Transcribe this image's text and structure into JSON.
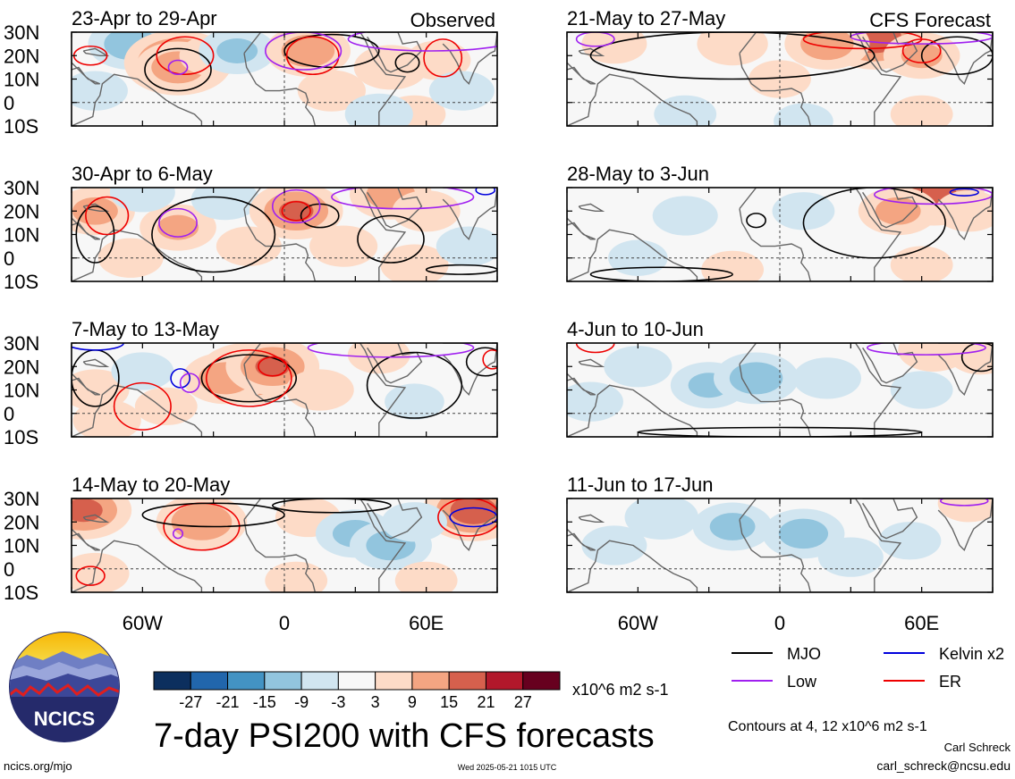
{
  "chart_data": {
    "type": "heatmap",
    "title": "7-day PSI200 with CFS forecasts",
    "colorbar": {
      "unit_label": "x10^6 m2 s-1",
      "tick_labels": [
        "-27",
        "-21",
        "-15",
        "-9",
        "-3",
        "3",
        "9",
        "15",
        "21",
        "27"
      ],
      "bins": [
        {
          "lo": null,
          "hi": -27,
          "color": "#0c2f5e"
        },
        {
          "lo": -27,
          "hi": -21,
          "color": "#2166ac"
        },
        {
          "lo": -21,
          "hi": -15,
          "color": "#4393c3"
        },
        {
          "lo": -15,
          "hi": -9,
          "color": "#92c5de"
        },
        {
          "lo": -9,
          "hi": -3,
          "color": "#d1e5f0"
        },
        {
          "lo": -3,
          "hi": 3,
          "color": "#f7f7f7"
        },
        {
          "lo": 3,
          "hi": 9,
          "color": "#fddbc7"
        },
        {
          "lo": 9,
          "hi": 15,
          "color": "#f4a582"
        },
        {
          "lo": 15,
          "hi": 21,
          "color": "#d6604d"
        },
        {
          "lo": 21,
          "hi": 27,
          "color": "#b2182b"
        },
        {
          "lo": 27,
          "hi": null,
          "color": "#67001f"
        }
      ]
    },
    "lat_ticks": [
      "30N",
      "20N",
      "10N",
      "0",
      "10S"
    ],
    "lon_ticks": [
      "60W",
      "0",
      "60E"
    ],
    "lat_range": [
      -10,
      30
    ],
    "lon_range": [
      -90,
      90
    ],
    "columns": [
      {
        "label": "Observed"
      },
      {
        "label": "CFS Forecast"
      }
    ],
    "panels": [
      {
        "col": 0,
        "row": 0,
        "period": "23-Apr to 29-Apr",
        "anomalies": [
          {
            "lon": -65,
            "lat": 25,
            "v": -12
          },
          {
            "lon": -45,
            "lat": 17,
            "v": 20
          },
          {
            "lon": -45,
            "lat": 15,
            "v": 12
          },
          {
            "lon": -30,
            "lat": 20,
            "v": 6
          },
          {
            "lon": -20,
            "lat": 22,
            "v": -9
          },
          {
            "lon": 10,
            "lat": 22,
            "v": 12
          },
          {
            "lon": 20,
            "lat": 5,
            "v": 6
          },
          {
            "lon": 45,
            "lat": 15,
            "v": 8
          },
          {
            "lon": 65,
            "lat": 18,
            "v": 5
          },
          {
            "lon": 55,
            "lat": -5,
            "v": 4
          },
          {
            "lon": 40,
            "lat": -5,
            "v": -6
          },
          {
            "lon": 75,
            "lat": 5,
            "v": -5
          },
          {
            "lon": -80,
            "lat": 5,
            "v": -5
          }
        ],
        "contours": [
          {
            "type": "MJO",
            "lon": -45,
            "lat": 14,
            "rlon": 14,
            "rlat": 9
          },
          {
            "type": "MJO",
            "lon": 20,
            "lat": 22,
            "rlon": 20,
            "rlat": 7
          },
          {
            "type": "MJO",
            "lon": 52,
            "lat": 17,
            "rlon": 5,
            "rlat": 4
          },
          {
            "type": "ER",
            "lon": -42,
            "lat": 20,
            "rlon": 12,
            "rlat": 8
          },
          {
            "type": "ER",
            "lon": 12,
            "lat": 20,
            "rlon": 11,
            "rlat": 8
          },
          {
            "type": "ER",
            "lon": 67,
            "lat": 19,
            "rlon": 8,
            "rlat": 8
          },
          {
            "type": "ER",
            "lon": -82,
            "lat": 20,
            "rlon": 7,
            "rlat": 4
          },
          {
            "type": "Low",
            "lon": -45,
            "lat": 15,
            "rlon": 4,
            "rlat": 3
          },
          {
            "type": "Low",
            "lon": 8,
            "lat": 22,
            "rlon": 16,
            "rlat": 8
          },
          {
            "type": "Low",
            "lon": 62,
            "lat": 27,
            "rlon": 35,
            "rlat": 5
          }
        ]
      },
      {
        "col": 0,
        "row": 1,
        "period": "30-Apr to 6-May",
        "anomalies": [
          {
            "lon": -80,
            "lat": 20,
            "v": 10
          },
          {
            "lon": -45,
            "lat": 13,
            "v": 9
          },
          {
            "lon": -65,
            "lat": 0,
            "v": 5
          },
          {
            "lon": -25,
            "lat": 25,
            "v": -6
          },
          {
            "lon": -15,
            "lat": 5,
            "v": 5
          },
          {
            "lon": 5,
            "lat": 20,
            "v": 15
          },
          {
            "lon": 45,
            "lat": 27,
            "v": 11
          },
          {
            "lon": 60,
            "lat": 20,
            "v": 6
          },
          {
            "lon": 25,
            "lat": 5,
            "v": 6
          },
          {
            "lon": 55,
            "lat": -3,
            "v": 6
          },
          {
            "lon": -60,
            "lat": 28,
            "v": -5
          },
          {
            "lon": 78,
            "lat": 5,
            "v": -5
          }
        ],
        "contours": [
          {
            "type": "MJO",
            "lon": -30,
            "lat": 10,
            "rlon": 26,
            "rlat": 16
          },
          {
            "type": "MJO",
            "lon": 45,
            "lat": 8,
            "rlon": 14,
            "rlat": 10
          },
          {
            "type": "MJO",
            "lon": 15,
            "lat": 18,
            "rlon": 8,
            "rlat": 5
          },
          {
            "type": "MJO",
            "lon": -80,
            "lat": 10,
            "rlon": 8,
            "rlat": 12
          },
          {
            "type": "MJO",
            "lon": 75,
            "lat": -5,
            "rlon": 15,
            "rlat": 2
          },
          {
            "type": "ER",
            "lon": -75,
            "lat": 18,
            "rlon": 9,
            "rlat": 8
          },
          {
            "type": "ER",
            "lon": 5,
            "lat": 20,
            "rlon": 6,
            "rlat": 4
          },
          {
            "type": "Low",
            "lon": -45,
            "lat": 15,
            "rlon": 8,
            "rlat": 6
          },
          {
            "type": "Low",
            "lon": 5,
            "lat": 22,
            "rlon": 10,
            "rlat": 7
          },
          {
            "type": "Low",
            "lon": 50,
            "lat": 26,
            "rlon": 30,
            "rlat": 5
          },
          {
            "type": "Kelvin x2",
            "lon": 85,
            "lat": 29,
            "rlon": 4,
            "rlat": 2
          }
        ]
      },
      {
        "col": 0,
        "row": 2,
        "period": "7-May to 13-May",
        "anomalies": [
          {
            "lon": -15,
            "lat": 17,
            "v": 18
          },
          {
            "lon": -25,
            "lat": 15,
            "v": 12
          },
          {
            "lon": -5,
            "lat": 20,
            "v": 15
          },
          {
            "lon": -80,
            "lat": 10,
            "v": 6
          },
          {
            "lon": -75,
            "lat": -3,
            "v": 6
          },
          {
            "lon": -50,
            "lat": 3,
            "v": 4
          },
          {
            "lon": 15,
            "lat": 10,
            "v": 6
          },
          {
            "lon": 40,
            "lat": 25,
            "v": 4
          },
          {
            "lon": -60,
            "lat": 18,
            "v": -4
          },
          {
            "lon": 55,
            "lat": 5,
            "v": -3
          }
        ],
        "contours": [
          {
            "type": "MJO",
            "lon": -15,
            "lat": 15,
            "rlon": 20,
            "rlat": 10
          },
          {
            "type": "MJO",
            "lon": 55,
            "lat": 12,
            "rlon": 20,
            "rlat": 14
          },
          {
            "type": "MJO",
            "lon": -80,
            "lat": 15,
            "rlon": 10,
            "rlat": 12
          },
          {
            "type": "MJO",
            "lon": 85,
            "lat": 22,
            "rlon": 8,
            "rlat": 6
          },
          {
            "type": "ER",
            "lon": -15,
            "lat": 15,
            "rlon": 18,
            "rlat": 12
          },
          {
            "type": "ER",
            "lon": -60,
            "lat": 3,
            "rlon": 12,
            "rlat": 10
          },
          {
            "type": "ER",
            "lon": -5,
            "lat": 20,
            "rlon": 6,
            "rlat": 4
          },
          {
            "type": "ER",
            "lon": 88,
            "lat": 23,
            "rlon": 4,
            "rlat": 4
          },
          {
            "type": "Kelvin x2",
            "lon": -44,
            "lat": 15,
            "rlon": 4,
            "rlat": 4
          },
          {
            "type": "Kelvin x2",
            "lon": -80,
            "lat": 30,
            "rlon": 12,
            "rlat": 3
          },
          {
            "type": "Low",
            "lon": -40,
            "lat": 13,
            "rlon": 4,
            "rlat": 4
          },
          {
            "type": "Low",
            "lon": 45,
            "lat": 28,
            "rlon": 35,
            "rlat": 4
          }
        ]
      },
      {
        "col": 0,
        "row": 3,
        "period": "14-May to 20-May",
        "anomalies": [
          {
            "lon": -35,
            "lat": 20,
            "v": 14
          },
          {
            "lon": -85,
            "lat": 25,
            "v": 16
          },
          {
            "lon": 80,
            "lat": 25,
            "v": 18
          },
          {
            "lon": -80,
            "lat": -2,
            "v": 6
          },
          {
            "lon": 10,
            "lat": 22,
            "v": 5
          },
          {
            "lon": 30,
            "lat": 15,
            "v": -10
          },
          {
            "lon": 45,
            "lat": 10,
            "v": -11
          },
          {
            "lon": 55,
            "lat": 20,
            "v": -5
          },
          {
            "lon": 5,
            "lat": -5,
            "v": 4
          },
          {
            "lon": 60,
            "lat": -5,
            "v": 4
          }
        ],
        "contours": [
          {
            "type": "ER",
            "lon": -35,
            "lat": 18,
            "rlon": 16,
            "rlat": 10
          },
          {
            "type": "ER",
            "lon": 78,
            "lat": 22,
            "rlon": 13,
            "rlat": 8
          },
          {
            "type": "ER",
            "lon": -82,
            "lat": -3,
            "rlon": 6,
            "rlat": 4
          },
          {
            "type": "Kelvin x2",
            "lon": 80,
            "lat": 22,
            "rlon": 10,
            "rlat": 4
          },
          {
            "type": "Low",
            "lon": -45,
            "lat": 15,
            "rlon": 2,
            "rlat": 2
          },
          {
            "type": "MJO",
            "lon": -30,
            "lat": 23,
            "rlon": 30,
            "rlat": 5
          },
          {
            "type": "MJO",
            "lon": 20,
            "lat": 27,
            "rlon": 25,
            "rlat": 3
          }
        ]
      },
      {
        "col": 1,
        "row": 0,
        "period": "21-May to 27-May",
        "anomalies": [
          {
            "lon": 40,
            "lat": 28,
            "v": 20
          },
          {
            "lon": 20,
            "lat": 25,
            "v": 12
          },
          {
            "lon": -20,
            "lat": 25,
            "v": 7
          },
          {
            "lon": 60,
            "lat": 20,
            "v": 9
          },
          {
            "lon": -70,
            "lat": 25,
            "v": 5
          },
          {
            "lon": 0,
            "lat": 10,
            "v": 4
          },
          {
            "lon": 60,
            "lat": -5,
            "v": 4
          },
          {
            "lon": -40,
            "lat": -5,
            "v": -4
          },
          {
            "lon": 10,
            "lat": -8,
            "v": -3
          }
        ],
        "contours": [
          {
            "type": "MJO",
            "lon": -20,
            "lat": 20,
            "rlon": 60,
            "rlat": 10
          },
          {
            "type": "MJO",
            "lon": 75,
            "lat": 20,
            "rlon": 15,
            "rlat": 8
          },
          {
            "type": "ER",
            "lon": 35,
            "lat": 27,
            "rlon": 25,
            "rlat": 4
          },
          {
            "type": "ER",
            "lon": 60,
            "lat": 22,
            "rlon": 8,
            "rlat": 5
          },
          {
            "type": "Low",
            "lon": 60,
            "lat": 28,
            "rlon": 30,
            "rlat": 3
          },
          {
            "type": "Low",
            "lon": -78,
            "lat": 27,
            "rlon": 8,
            "rlat": 3
          }
        ]
      },
      {
        "col": 1,
        "row": 1,
        "period": "28-May to 3-Jun",
        "anomalies": [
          {
            "lon": 65,
            "lat": 27,
            "v": 18
          },
          {
            "lon": 50,
            "lat": 20,
            "v": 10
          },
          {
            "lon": 80,
            "lat": 20,
            "v": 6
          },
          {
            "lon": -40,
            "lat": 18,
            "v": -5
          },
          {
            "lon": 10,
            "lat": 20,
            "v": -4
          },
          {
            "lon": -20,
            "lat": -5,
            "v": 4
          },
          {
            "lon": 60,
            "lat": -3,
            "v": 4
          },
          {
            "lon": -60,
            "lat": 0,
            "v": -3
          }
        ],
        "contours": [
          {
            "type": "MJO",
            "lon": 40,
            "lat": 15,
            "rlon": 30,
            "rlat": 15
          },
          {
            "type": "MJO",
            "lon": -10,
            "lat": 16,
            "rlon": 4,
            "rlat": 3
          },
          {
            "type": "MJO",
            "lon": -50,
            "lat": -7,
            "rlon": 30,
            "rlat": 3
          },
          {
            "type": "Low",
            "lon": 65,
            "lat": 27,
            "rlon": 25,
            "rlat": 4
          },
          {
            "type": "Kelvin x2",
            "lon": 78,
            "lat": 28,
            "rlon": 6,
            "rlat": 1.5
          }
        ]
      },
      {
        "col": 1,
        "row": 2,
        "period": "4-Jun to 10-Jun",
        "anomalies": [
          {
            "lon": -30,
            "lat": 12,
            "v": -9
          },
          {
            "lon": -10,
            "lat": 15,
            "v": -12
          },
          {
            "lon": -60,
            "lat": 20,
            "v": -6
          },
          {
            "lon": 20,
            "lat": 15,
            "v": -6
          },
          {
            "lon": -80,
            "lat": 5,
            "v": -5
          },
          {
            "lon": 60,
            "lat": 10,
            "v": -4
          },
          {
            "lon": 65,
            "lat": 27,
            "v": 7
          },
          {
            "lon": 85,
            "lat": 25,
            "v": 5
          }
        ],
        "contours": [
          {
            "type": "MJO",
            "lon": 85,
            "lat": 24,
            "rlon": 8,
            "rlat": 6
          },
          {
            "type": "MJO",
            "lon": 0,
            "lat": -8,
            "rlon": 60,
            "rlat": 2
          },
          {
            "type": "Low",
            "lon": 62,
            "lat": 28,
            "rlon": 25,
            "rlat": 3
          },
          {
            "type": "ER",
            "lon": -78,
            "lat": 30,
            "rlon": 8,
            "rlat": 4
          }
        ]
      },
      {
        "col": 1,
        "row": 3,
        "period": "11-Jun to 17-Jun",
        "anomalies": [
          {
            "lon": -20,
            "lat": 18,
            "v": -10
          },
          {
            "lon": 10,
            "lat": 15,
            "v": -11
          },
          {
            "lon": -50,
            "lat": 22,
            "v": -8
          },
          {
            "lon": -70,
            "lat": 10,
            "v": -5
          },
          {
            "lon": 30,
            "lat": 5,
            "v": -5
          },
          {
            "lon": 55,
            "lat": 12,
            "v": -4
          },
          {
            "lon": 80,
            "lat": 28,
            "v": 4
          }
        ],
        "contours": [
          {
            "type": "Low",
            "lon": 78,
            "lat": 29,
            "rlon": 10,
            "rlat": 2
          }
        ]
      }
    ],
    "legend": [
      {
        "name": "MJO",
        "color": "#000000"
      },
      {
        "name": "Kelvin x2",
        "color": "#0000dd"
      },
      {
        "name": "Low",
        "color": "#a020f0"
      },
      {
        "name": "ER",
        "color": "#ee0000"
      }
    ],
    "contour_note": "Contours at 4, 12 x10^6 m2 s-1"
  },
  "logo": {
    "text": "NCICS"
  },
  "footer": {
    "left_url": "ncics.org/mjo",
    "timestamp": "Wed 2025-05-21 1015 UTC",
    "author": "Carl Schreck",
    "email": "carl_schreck@ncsu.edu"
  }
}
